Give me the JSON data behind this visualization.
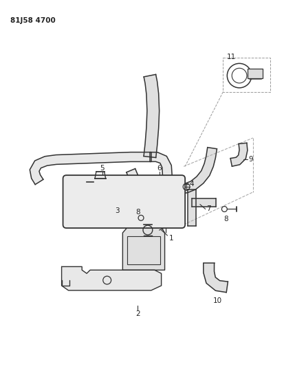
{
  "title": "81J58 4700",
  "background_color": "#ffffff",
  "line_color": "#333333",
  "fig_width": 4.13,
  "fig_height": 5.33,
  "dpi": 100
}
